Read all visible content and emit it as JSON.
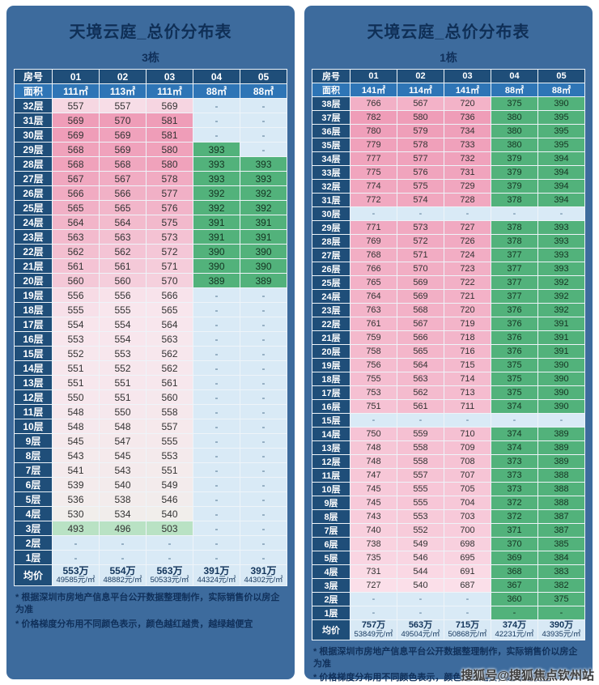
{
  "watermark": "搜狐号@搜狐焦点钦州站",
  "colors": {
    "page_bg": "#ffffff",
    "panel_bg": "#3d6b9d",
    "header_bg": "#1f4e79",
    "area_bg": "#2e75b6",
    "title_text": "#0f2f56",
    "green_cell": "#52b27b",
    "green_text": "#143321",
    "dash_cell": "#d9eaf6",
    "dash_text": "#4a6f8c",
    "avg_bg": "#d8e9f5",
    "avg_text": "#14365c",
    "pink_strong": "#ef9db8",
    "pink_pale": "#f8e6ed",
    "pink_light": "#fbdfe9",
    "mid_white": "#f0efeb",
    "green_light": "#b9e2c4"
  },
  "chart_data": [
    {
      "type": "table",
      "title": "天境云庭_总价分布表",
      "building": "3栋",
      "corner": {
        "row_label": "房号",
        "area_label": "面积",
        "avg_label": "均价"
      },
      "columns": [
        "01",
        "02",
        "03",
        "04",
        "05"
      ],
      "areas": [
        "111㎡",
        "113㎡",
        "111㎡",
        "88㎡",
        "88㎡"
      ],
      "rows": [
        {
          "floor": "32层",
          "values": [
            "557",
            "557",
            "569",
            "-",
            "-"
          ]
        },
        {
          "floor": "31层",
          "values": [
            "569",
            "570",
            "581",
            "-",
            "-"
          ]
        },
        {
          "floor": "30层",
          "values": [
            "569",
            "569",
            "581",
            "-",
            "-"
          ]
        },
        {
          "floor": "29层",
          "values": [
            "568",
            "569",
            "580",
            "393",
            "-"
          ]
        },
        {
          "floor": "28层",
          "values": [
            "568",
            "568",
            "580",
            "393",
            "393"
          ]
        },
        {
          "floor": "27层",
          "values": [
            "567",
            "567",
            "578",
            "393",
            "393"
          ]
        },
        {
          "floor": "26层",
          "values": [
            "566",
            "566",
            "577",
            "392",
            "392"
          ]
        },
        {
          "floor": "25层",
          "values": [
            "565",
            "565",
            "576",
            "392",
            "392"
          ]
        },
        {
          "floor": "24层",
          "values": [
            "564",
            "564",
            "575",
            "391",
            "391"
          ]
        },
        {
          "floor": "23层",
          "values": [
            "563",
            "563",
            "573",
            "391",
            "391"
          ]
        },
        {
          "floor": "22层",
          "values": [
            "562",
            "562",
            "572",
            "390",
            "390"
          ]
        },
        {
          "floor": "21层",
          "values": [
            "561",
            "561",
            "571",
            "390",
            "390"
          ]
        },
        {
          "floor": "20层",
          "values": [
            "560",
            "560",
            "570",
            "389",
            "389"
          ]
        },
        {
          "floor": "19层",
          "values": [
            "556",
            "556",
            "566",
            "-",
            "-"
          ]
        },
        {
          "floor": "18层",
          "values": [
            "555",
            "555",
            "565",
            "-",
            "-"
          ]
        },
        {
          "floor": "17层",
          "values": [
            "554",
            "554",
            "564",
            "-",
            "-"
          ]
        },
        {
          "floor": "16层",
          "values": [
            "553",
            "554",
            "563",
            "-",
            "-"
          ]
        },
        {
          "floor": "15层",
          "values": [
            "552",
            "553",
            "562",
            "-",
            "-"
          ]
        },
        {
          "floor": "14层",
          "values": [
            "551",
            "552",
            "562",
            "-",
            "-"
          ]
        },
        {
          "floor": "13层",
          "values": [
            "551",
            "551",
            "561",
            "-",
            "-"
          ]
        },
        {
          "floor": "12层",
          "values": [
            "550",
            "551",
            "560",
            "-",
            "-"
          ]
        },
        {
          "floor": "11层",
          "values": [
            "548",
            "550",
            "558",
            "-",
            "-"
          ]
        },
        {
          "floor": "10层",
          "values": [
            "548",
            "548",
            "557",
            "-",
            "-"
          ]
        },
        {
          "floor": "9层",
          "values": [
            "545",
            "547",
            "555",
            "-",
            "-"
          ]
        },
        {
          "floor": "8层",
          "values": [
            "543",
            "545",
            "553",
            "-",
            "-"
          ]
        },
        {
          "floor": "7层",
          "values": [
            "541",
            "543",
            "551",
            "-",
            "-"
          ]
        },
        {
          "floor": "6层",
          "values": [
            "539",
            "540",
            "549",
            "-",
            "-"
          ]
        },
        {
          "floor": "5层",
          "values": [
            "536",
            "538",
            "546",
            "-",
            "-"
          ]
        },
        {
          "floor": "4层",
          "values": [
            "530",
            "534",
            "540",
            "-",
            "-"
          ]
        },
        {
          "floor": "3层",
          "values": [
            "493",
            "496",
            "503",
            "-",
            "-"
          ]
        },
        {
          "floor": "2层",
          "values": [
            "-",
            "-",
            "-",
            "-",
            "-"
          ]
        },
        {
          "floor": "1层",
          "values": [
            "-",
            "-",
            "-",
            "-",
            "-"
          ]
        }
      ],
      "averages": [
        {
          "total": "553万",
          "unit": "49585元/㎡"
        },
        {
          "total": "554万",
          "unit": "48882元/㎡"
        },
        {
          "total": "563万",
          "unit": "50533元/㎡"
        },
        {
          "total": "391万",
          "unit": "44324元/㎡"
        },
        {
          "total": "391万",
          "unit": "44302元/㎡"
        }
      ],
      "notes": [
        "* 根据深圳市房地产信息平台公开数据整理制作，实际销售价以房企为准",
        "* 价格梯度分布用不同颜色表示，颜色越红越贵，越绿越便宜"
      ]
    },
    {
      "type": "table",
      "title": "天境云庭_总价分布表",
      "building": "1栋",
      "corner": {
        "row_label": "房号",
        "area_label": "面积",
        "avg_label": "均价"
      },
      "columns": [
        "01",
        "02",
        "03",
        "04",
        "05"
      ],
      "areas": [
        "141㎡",
        "114㎡",
        "141㎡",
        "88㎡",
        "88㎡"
      ],
      "rows": [
        {
          "floor": "38层",
          "values": [
            "766",
            "567",
            "720",
            "375",
            "390"
          ]
        },
        {
          "floor": "37层",
          "values": [
            "782",
            "580",
            "736",
            "380",
            "395"
          ]
        },
        {
          "floor": "36层",
          "values": [
            "780",
            "579",
            "734",
            "380",
            "395"
          ]
        },
        {
          "floor": "35层",
          "values": [
            "779",
            "578",
            "733",
            "380",
            "395"
          ]
        },
        {
          "floor": "34层",
          "values": [
            "777",
            "577",
            "732",
            "379",
            "394"
          ]
        },
        {
          "floor": "33层",
          "values": [
            "775",
            "576",
            "731",
            "379",
            "394"
          ]
        },
        {
          "floor": "32层",
          "values": [
            "774",
            "575",
            "729",
            "379",
            "394"
          ]
        },
        {
          "floor": "31层",
          "values": [
            "772",
            "574",
            "728",
            "378",
            "394"
          ]
        },
        {
          "floor": "30层",
          "values": [
            "-",
            "-",
            "-",
            "-",
            "-"
          ]
        },
        {
          "floor": "29层",
          "values": [
            "771",
            "573",
            "727",
            "378",
            "393"
          ]
        },
        {
          "floor": "28层",
          "values": [
            "769",
            "572",
            "726",
            "378",
            "393"
          ]
        },
        {
          "floor": "27层",
          "values": [
            "768",
            "571",
            "724",
            "377",
            "393"
          ]
        },
        {
          "floor": "26层",
          "values": [
            "766",
            "570",
            "723",
            "377",
            "393"
          ]
        },
        {
          "floor": "25层",
          "values": [
            "765",
            "569",
            "722",
            "377",
            "392"
          ]
        },
        {
          "floor": "24层",
          "values": [
            "764",
            "569",
            "721",
            "377",
            "392"
          ]
        },
        {
          "floor": "23层",
          "values": [
            "763",
            "568",
            "720",
            "376",
            "392"
          ]
        },
        {
          "floor": "22层",
          "values": [
            "761",
            "567",
            "719",
            "376",
            "391"
          ]
        },
        {
          "floor": "21层",
          "values": [
            "759",
            "566",
            "718",
            "376",
            "391"
          ]
        },
        {
          "floor": "20层",
          "values": [
            "758",
            "565",
            "716",
            "376",
            "391"
          ]
        },
        {
          "floor": "19层",
          "values": [
            "756",
            "564",
            "715",
            "375",
            "390"
          ]
        },
        {
          "floor": "18层",
          "values": [
            "755",
            "563",
            "714",
            "375",
            "390"
          ]
        },
        {
          "floor": "17层",
          "values": [
            "753",
            "562",
            "713",
            "375",
            "390"
          ]
        },
        {
          "floor": "16层",
          "values": [
            "751",
            "561",
            "711",
            "374",
            "390"
          ]
        },
        {
          "floor": "15层",
          "values": [
            "-",
            "-",
            "-",
            "-",
            "-"
          ]
        },
        {
          "floor": "14层",
          "values": [
            "750",
            "559",
            "710",
            "374",
            "389"
          ]
        },
        {
          "floor": "13层",
          "values": [
            "748",
            "558",
            "709",
            "374",
            "389"
          ]
        },
        {
          "floor": "12层",
          "values": [
            "748",
            "558",
            "708",
            "373",
            "389"
          ]
        },
        {
          "floor": "11层",
          "values": [
            "747",
            "557",
            "707",
            "373",
            "388"
          ]
        },
        {
          "floor": "10层",
          "values": [
            "745",
            "555",
            "705",
            "373",
            "388"
          ]
        },
        {
          "floor": "9层",
          "values": [
            "745",
            "555",
            "704",
            "372",
            "388"
          ]
        },
        {
          "floor": "8层",
          "values": [
            "743",
            "553",
            "703",
            "372",
            "387"
          ]
        },
        {
          "floor": "7层",
          "values": [
            "740",
            "552",
            "700",
            "371",
            "387"
          ]
        },
        {
          "floor": "6层",
          "values": [
            "738",
            "549",
            "698",
            "370",
            "385"
          ]
        },
        {
          "floor": "5层",
          "values": [
            "735",
            "546",
            "695",
            "369",
            "384"
          ]
        },
        {
          "floor": "4层",
          "values": [
            "731",
            "544",
            "691",
            "368",
            "383"
          ]
        },
        {
          "floor": "3层",
          "values": [
            "727",
            "540",
            "687",
            "367",
            "382"
          ]
        },
        {
          "floor": "2层",
          "values": [
            "-",
            "-",
            "-",
            "360",
            "375"
          ]
        },
        {
          "floor": "1层",
          "values": [
            "-",
            "-",
            "-",
            "-",
            "-"
          ],
          "tones": [
            null,
            null,
            null,
            "green",
            "green"
          ]
        }
      ],
      "averages": [
        {
          "total": "757万",
          "unit": "53849元/㎡"
        },
        {
          "total": "563万",
          "unit": "49504元/㎡"
        },
        {
          "total": "715万",
          "unit": "50868元/㎡"
        },
        {
          "total": "374万",
          "unit": "42231元/㎡"
        },
        {
          "total": "390万",
          "unit": "43935元/㎡"
        }
      ],
      "notes": [
        "* 根据深圳市房地产信息平台公开数据整理制作，实际销售价以房企为准",
        "* 价格梯度分布用不同颜色表示，颜色越红越贵，越绿越便宜"
      ]
    }
  ]
}
